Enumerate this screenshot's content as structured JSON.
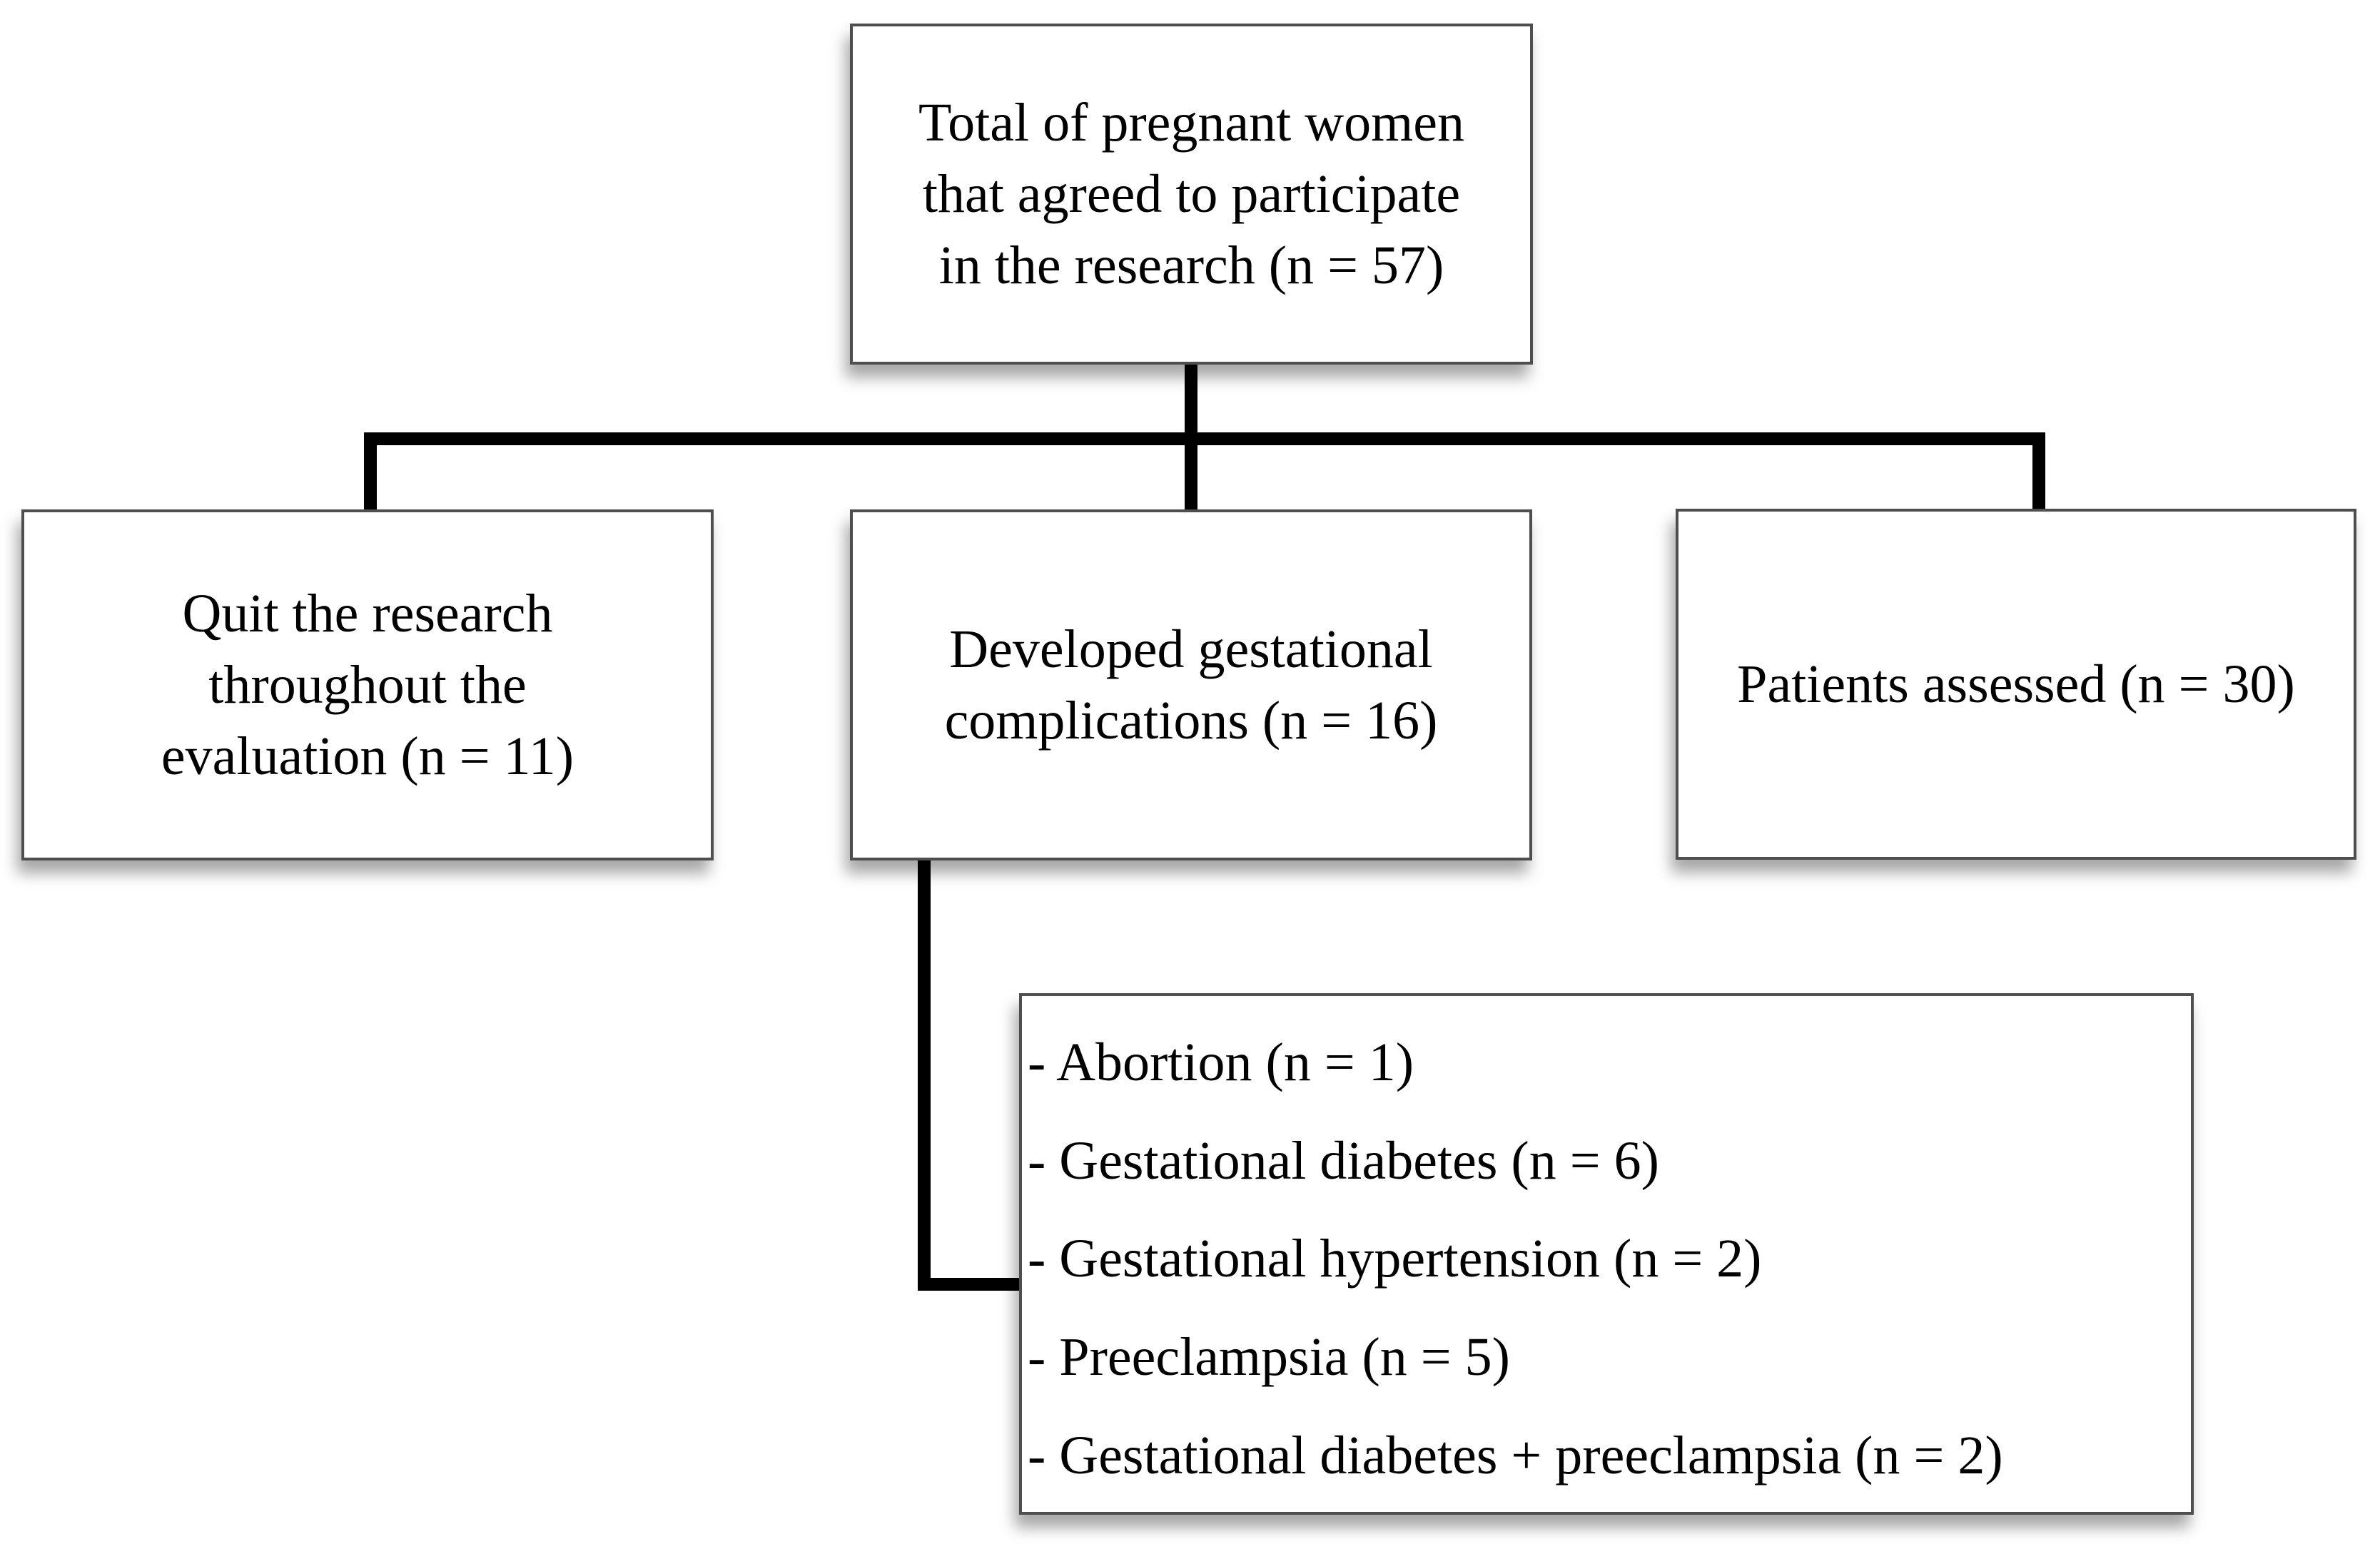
{
  "figure": {
    "type": "flowchart",
    "background_color": "#ffffff",
    "connector_color": "#000000",
    "box_border_color": "#4e4e4e",
    "text_color": "#000000"
  },
  "nodes": {
    "total": {
      "lines": [
        "Total of pregnant women",
        "that agreed to participate",
        "in the research (n = 57)"
      ],
      "n": 57
    },
    "quit": {
      "lines": [
        "Quit the research",
        "throughout the",
        "evaluation (n = 11)"
      ],
      "n": 11
    },
    "complications": {
      "lines": [
        "Developed gestational",
        "complications (n = 16)"
      ],
      "n": 16
    },
    "assessed": {
      "lines": [
        "Patients assessed (n = 30)"
      ],
      "n": 30
    },
    "complication_breakdown": {
      "items": [
        {
          "label": "- Abortion (n = 1)",
          "n": 1
        },
        {
          "label": "- Gestational diabetes (n = 6)",
          "n": 6
        },
        {
          "label": "- Gestational hypertension (n = 2)",
          "n": 2
        },
        {
          "label": "- Preeclampsia (n = 5)",
          "n": 5
        },
        {
          "label": "- Gestational diabetes + preeclampsia (n = 2)",
          "n": 2
        }
      ]
    }
  },
  "edges": [
    {
      "from": "total",
      "to": "quit"
    },
    {
      "from": "total",
      "to": "complications"
    },
    {
      "from": "total",
      "to": "assessed"
    },
    {
      "from": "complications",
      "to": "complication_breakdown"
    }
  ]
}
